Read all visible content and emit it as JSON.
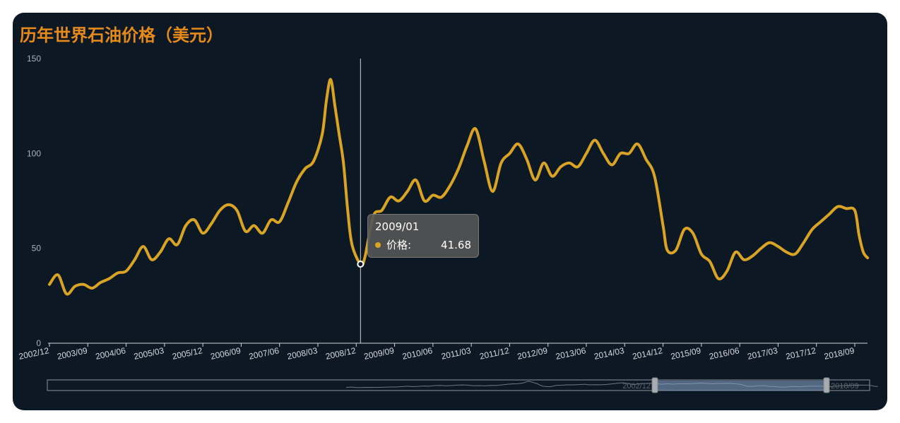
{
  "chart_data": {
    "type": "line",
    "title": "历年世界石油价格（美元）",
    "xlabel": "",
    "ylabel": "",
    "ylim": [
      0,
      150
    ],
    "yticks": [
      0,
      50,
      100,
      150
    ],
    "xticks": [
      "2002/12",
      "2003/09",
      "2004/06",
      "2005/03",
      "2005/12",
      "2006/09",
      "2007/06",
      "2008/03",
      "2008/12",
      "2009/09",
      "2010/06",
      "2011/03",
      "2011/12",
      "2012/09",
      "2013/06",
      "2014/03",
      "2014/12",
      "2015/09",
      "2016/06",
      "2017/03",
      "2017/12",
      "2018/09"
    ],
    "line_color": "#d9a426",
    "series": [
      {
        "name": "价格",
        "points": [
          [
            "2002/12",
            31
          ],
          [
            "2003/02",
            36
          ],
          [
            "2003/04",
            26
          ],
          [
            "2003/06",
            30
          ],
          [
            "2003/08",
            31
          ],
          [
            "2003/10",
            29
          ],
          [
            "2003/12",
            32
          ],
          [
            "2004/02",
            34
          ],
          [
            "2004/04",
            37
          ],
          [
            "2004/06",
            38
          ],
          [
            "2004/08",
            44
          ],
          [
            "2004/10",
            51
          ],
          [
            "2004/12",
            44
          ],
          [
            "2005/02",
            48
          ],
          [
            "2005/04",
            55
          ],
          [
            "2005/06",
            52
          ],
          [
            "2005/08",
            62
          ],
          [
            "2005/10",
            65
          ],
          [
            "2005/12",
            58
          ],
          [
            "2006/02",
            63
          ],
          [
            "2006/04",
            70
          ],
          [
            "2006/06",
            73
          ],
          [
            "2006/08",
            70
          ],
          [
            "2006/10",
            59
          ],
          [
            "2006/12",
            62
          ],
          [
            "2007/02",
            58
          ],
          [
            "2007/04",
            65
          ],
          [
            "2007/06",
            64
          ],
          [
            "2007/08",
            74
          ],
          [
            "2007/10",
            85
          ],
          [
            "2007/12",
            92
          ],
          [
            "2008/02",
            96
          ],
          [
            "2008/04",
            110
          ],
          [
            "2008/05",
            128
          ],
          [
            "2008/06",
            139
          ],
          [
            "2008/07",
            125
          ],
          [
            "2008/08",
            110
          ],
          [
            "2008/09",
            95
          ],
          [
            "2008/10",
            70
          ],
          [
            "2008/11",
            52
          ],
          [
            "2009/01",
            41.68
          ],
          [
            "2009/02",
            45
          ],
          [
            "2009/04",
            67
          ],
          [
            "2009/06",
            70
          ],
          [
            "2009/08",
            77
          ],
          [
            "2009/10",
            75
          ],
          [
            "2009/12",
            80
          ],
          [
            "2010/02",
            86
          ],
          [
            "2010/04",
            75
          ],
          [
            "2010/06",
            78
          ],
          [
            "2010/08",
            77
          ],
          [
            "2010/10",
            83
          ],
          [
            "2010/12",
            92
          ],
          [
            "2011/02",
            104
          ],
          [
            "2011/04",
            113
          ],
          [
            "2011/06",
            96
          ],
          [
            "2011/08",
            80
          ],
          [
            "2011/10",
            95
          ],
          [
            "2011/12",
            100
          ],
          [
            "2012/02",
            105
          ],
          [
            "2012/04",
            97
          ],
          [
            "2012/06",
            86
          ],
          [
            "2012/08",
            95
          ],
          [
            "2012/10",
            88
          ],
          [
            "2012/12",
            93
          ],
          [
            "2013/02",
            95
          ],
          [
            "2013/04",
            93
          ],
          [
            "2013/06",
            100
          ],
          [
            "2013/08",
            107
          ],
          [
            "2013/10",
            100
          ],
          [
            "2013/12",
            94
          ],
          [
            "2014/02",
            100
          ],
          [
            "2014/04",
            100
          ],
          [
            "2014/06",
            105
          ],
          [
            "2014/08",
            97
          ],
          [
            "2014/10",
            88
          ],
          [
            "2014/12",
            62
          ],
          [
            "2015/01",
            49
          ],
          [
            "2015/03",
            49
          ],
          [
            "2015/05",
            60
          ],
          [
            "2015/07",
            58
          ],
          [
            "2015/09",
            47
          ],
          [
            "2015/11",
            43
          ],
          [
            "2016/01",
            34
          ],
          [
            "2016/03",
            38
          ],
          [
            "2016/05",
            48
          ],
          [
            "2016/07",
            44
          ],
          [
            "2016/09",
            46
          ],
          [
            "2016/11",
            50
          ],
          [
            "2017/01",
            53
          ],
          [
            "2017/03",
            51
          ],
          [
            "2017/05",
            48
          ],
          [
            "2017/07",
            47
          ],
          [
            "2017/09",
            53
          ],
          [
            "2017/11",
            60
          ],
          [
            "2018/01",
            64
          ],
          [
            "2018/03",
            68
          ],
          [
            "2018/05",
            72
          ],
          [
            "2018/07",
            71
          ],
          [
            "2018/09",
            70
          ],
          [
            "2018/10",
            57
          ],
          [
            "2018/11",
            48
          ],
          [
            "2018/12",
            45
          ]
        ]
      }
    ],
    "highlight": {
      "x": "2009/01",
      "value": 41.68
    },
    "tooltip": {
      "date": "2009/01",
      "label": "价格:",
      "value": "41.68"
    },
    "datazoom": {
      "start_label": "2002/12",
      "end_label": "2018/09"
    },
    "grid": false,
    "legend": "none"
  }
}
